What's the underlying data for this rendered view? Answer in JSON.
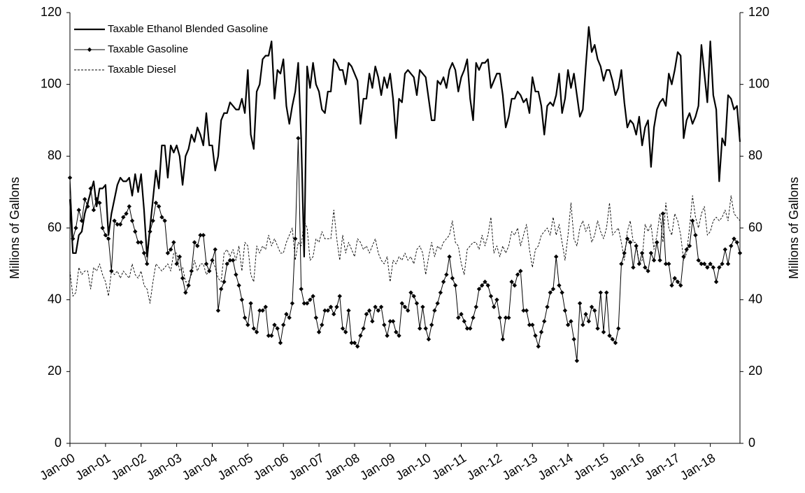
{
  "chart_data": {
    "type": "line",
    "y_label": "Millions of Gallons",
    "y2_label": "Millions of Gallons",
    "ylim": [
      0,
      120
    ],
    "yticks": [
      0,
      20,
      40,
      60,
      80,
      100,
      120
    ],
    "y2lim": [
      0,
      120
    ],
    "y2ticks": [
      0,
      20,
      40,
      60,
      80,
      100,
      120
    ],
    "legend": "top-left",
    "categories": [
      "Jan-00",
      null,
      null,
      null,
      null,
      null,
      null,
      null,
      null,
      null,
      null,
      null,
      "Jan-01",
      null,
      null,
      null,
      null,
      null,
      null,
      null,
      null,
      null,
      null,
      null,
      "Jan-02",
      null,
      null,
      null,
      null,
      null,
      null,
      null,
      null,
      null,
      null,
      null,
      "Jan-03",
      null,
      null,
      null,
      null,
      null,
      null,
      null,
      null,
      null,
      null,
      null,
      "Jan-04",
      null,
      null,
      null,
      null,
      null,
      null,
      null,
      null,
      null,
      null,
      null,
      "Jan-05",
      null,
      null,
      null,
      null,
      null,
      null,
      null,
      null,
      null,
      null,
      null,
      "Jan-06",
      null,
      null,
      null,
      null,
      null,
      null,
      null,
      null,
      null,
      null,
      null,
      "Jan-07",
      null,
      null,
      null,
      null,
      null,
      null,
      null,
      null,
      null,
      null,
      null,
      "Jan-08",
      null,
      null,
      null,
      null,
      null,
      null,
      null,
      null,
      null,
      null,
      null,
      "Jan-09",
      null,
      null,
      null,
      null,
      null,
      null,
      null,
      null,
      null,
      null,
      null,
      "Jan-10",
      null,
      null,
      null,
      null,
      null,
      null,
      null,
      null,
      null,
      null,
      null,
      "Jan-11",
      null,
      null,
      null,
      null,
      null,
      null,
      null,
      null,
      null,
      null,
      null,
      "Jan-12",
      null,
      null,
      null,
      null,
      null,
      null,
      null,
      null,
      null,
      null,
      null,
      "Jan-13",
      null,
      null,
      null,
      null,
      null,
      null,
      null,
      null,
      null,
      null,
      null,
      "Jan-14",
      null,
      null,
      null,
      null,
      null,
      null,
      null,
      null,
      null,
      null,
      null,
      "Jan-15",
      null,
      null,
      null,
      null,
      null,
      null,
      null,
      null,
      null,
      null,
      null,
      "Jan-16",
      null,
      null,
      null,
      null,
      null,
      null,
      null,
      null,
      null,
      null,
      null,
      "Jan-17",
      null,
      null,
      null,
      null,
      null,
      null,
      null,
      null,
      null,
      null,
      null,
      "Jan-18",
      null,
      null,
      null,
      null,
      null,
      null,
      null,
      null,
      null,
      null
    ],
    "series": [
      {
        "name": "Taxable Ethanol Blended Gasoline",
        "color": "#000000",
        "width": 2.2,
        "dash": false,
        "values": [
          68,
          53,
          53,
          58,
          59,
          64,
          67,
          70,
          73,
          66,
          71,
          71,
          72,
          58,
          64,
          68,
          72,
          74,
          73,
          73,
          74,
          69,
          75,
          70,
          75,
          65,
          52,
          60,
          68,
          76,
          71,
          83,
          83,
          74,
          83,
          81,
          83,
          80,
          72,
          80,
          82,
          86,
          84,
          88,
          86,
          83,
          92,
          83,
          83,
          76,
          80,
          90,
          92,
          92,
          95,
          94,
          93,
          93,
          96,
          92,
          104,
          86,
          82,
          98,
          100,
          107,
          108,
          108,
          112,
          96,
          104,
          103,
          107,
          94,
          89,
          94,
          98,
          106,
          85,
          52,
          105,
          99,
          106,
          100,
          98,
          93,
          92,
          98,
          98,
          107,
          106,
          104,
          104,
          100,
          106,
          105,
          103,
          101,
          89,
          96,
          96,
          103,
          99,
          105,
          102,
          97,
          102,
          99,
          103,
          96,
          85,
          96,
          95,
          103,
          104,
          103,
          102,
          97,
          104,
          103,
          102,
          96,
          90,
          90,
          101,
          100,
          102,
          99,
          104,
          106,
          104,
          98,
          102,
          104,
          107,
          96,
          90,
          106,
          104,
          106,
          106,
          107,
          99,
          101,
          103,
          103,
          97,
          88,
          91,
          96,
          96,
          98,
          97,
          95,
          96,
          92,
          102,
          98,
          98,
          94,
          86,
          94,
          95,
          94,
          97,
          103,
          92,
          96,
          104,
          99,
          103,
          97,
          91,
          93,
          105,
          116,
          109,
          111,
          107,
          105,
          101,
          104,
          104,
          101,
          97,
          99,
          104,
          95,
          88,
          90,
          89,
          86,
          91,
          83,
          88,
          90,
          77,
          88,
          93,
          95,
          96,
          94,
          103,
          100,
          104,
          109,
          108,
          85,
          90,
          92,
          89,
          91,
          94,
          111,
          103,
          95,
          112,
          97,
          93,
          73,
          85,
          83,
          97,
          96,
          93,
          94,
          84
        ]
      },
      {
        "name": "Taxable Gasoline",
        "color": "#000000",
        "width": 1,
        "dash": false,
        "marker": "diamond",
        "values": [
          74,
          57,
          60,
          65,
          62,
          68,
          66,
          71,
          65,
          68,
          67,
          60,
          58,
          57,
          48,
          62,
          61,
          61,
          63,
          64,
          66,
          62,
          59,
          56,
          56,
          53,
          50,
          59,
          62,
          67,
          66,
          63,
          62,
          53,
          54,
          56,
          50,
          52,
          46,
          42,
          44,
          48,
          56,
          55,
          58,
          58,
          50,
          48,
          51,
          54,
          37,
          43,
          45,
          50,
          51,
          51,
          47,
          44,
          40,
          35,
          33,
          39,
          32,
          31,
          37,
          37,
          38,
          30,
          30,
          33,
          32,
          28,
          33,
          36,
          35,
          39,
          57,
          85,
          43,
          39,
          39,
          40,
          41,
          35,
          31,
          33,
          37,
          37,
          38,
          36,
          38,
          41,
          32,
          31,
          37,
          28,
          28,
          27,
          30,
          32,
          36,
          37,
          34,
          38,
          37,
          38,
          33,
          30,
          34,
          34,
          31,
          30,
          39,
          38,
          37,
          42,
          41,
          39,
          32,
          38,
          32,
          29,
          33,
          37,
          39,
          42,
          45,
          47,
          52,
          46,
          44,
          35,
          36,
          34,
          32,
          32,
          35,
          38,
          43,
          44,
          45,
          44,
          41,
          38,
          40,
          35,
          29,
          35,
          35,
          45,
          44,
          47,
          48,
          37,
          37,
          33,
          33,
          30,
          27,
          31,
          34,
          38,
          42,
          43,
          52,
          44,
          42,
          37,
          33,
          34,
          29,
          23,
          39,
          33,
          36,
          34,
          38,
          37,
          32,
          42,
          31,
          42,
          30,
          29,
          28,
          32,
          50,
          53,
          57,
          56,
          49,
          55,
          50,
          53,
          49,
          48,
          53,
          51,
          56,
          51,
          64,
          50,
          50,
          44,
          46,
          45,
          44,
          52,
          54,
          55,
          62,
          58,
          51,
          50,
          50,
          49,
          50,
          49,
          45,
          49,
          50,
          54,
          50,
          55,
          57,
          56,
          53
        ]
      },
      {
        "name": "Taxable Diesel",
        "color": "#000000",
        "width": 0.9,
        "dash": true,
        "values": [
          48,
          41,
          42,
          49,
          47,
          48,
          48,
          43,
          49,
          48,
          50,
          47,
          45,
          41,
          48,
          47,
          48,
          46,
          48,
          47,
          46,
          50,
          47,
          46,
          48,
          44,
          43,
          39,
          45,
          50,
          49,
          48,
          49,
          50,
          48,
          53,
          53,
          48,
          49,
          45,
          45,
          47,
          51,
          48,
          50,
          50,
          47,
          48,
          51,
          49,
          46,
          45,
          53,
          54,
          52,
          54,
          51,
          55,
          48,
          56,
          55,
          47,
          45,
          55,
          53,
          55,
          54,
          58,
          55,
          57,
          55,
          53,
          53,
          56,
          58,
          60,
          51,
          56,
          55,
          62,
          60,
          51,
          52,
          57,
          56,
          59,
          57,
          57,
          57,
          65,
          57,
          51,
          58,
          53,
          56,
          54,
          52,
          57,
          56,
          54,
          55,
          53,
          55,
          57,
          53,
          51,
          50,
          52,
          45,
          51,
          50,
          52,
          51,
          53,
          51,
          52,
          50,
          54,
          55,
          53,
          47,
          52,
          56,
          52,
          55,
          54,
          56,
          57,
          58,
          62,
          56,
          55,
          50,
          47,
          54,
          55,
          56,
          56,
          54,
          58,
          55,
          58,
          63,
          53,
          55,
          52,
          55,
          53,
          55,
          59,
          58,
          60,
          55,
          58,
          61,
          54,
          49,
          54,
          55,
          58,
          59,
          60,
          58,
          63,
          58,
          61,
          56,
          51,
          58,
          67,
          57,
          55,
          60,
          62,
          59,
          61,
          56,
          58,
          62,
          59,
          57,
          60,
          67,
          58,
          59,
          60,
          56,
          51,
          59,
          62,
          56,
          56,
          50,
          51,
          61,
          59,
          61,
          54,
          58,
          64,
          56,
          67,
          60,
          58,
          64,
          62,
          58,
          51,
          53,
          60,
          69,
          63,
          60,
          64,
          66,
          58,
          59,
          62,
          63,
          62,
          63,
          65,
          62,
          69,
          64,
          63,
          62
        ]
      }
    ]
  }
}
